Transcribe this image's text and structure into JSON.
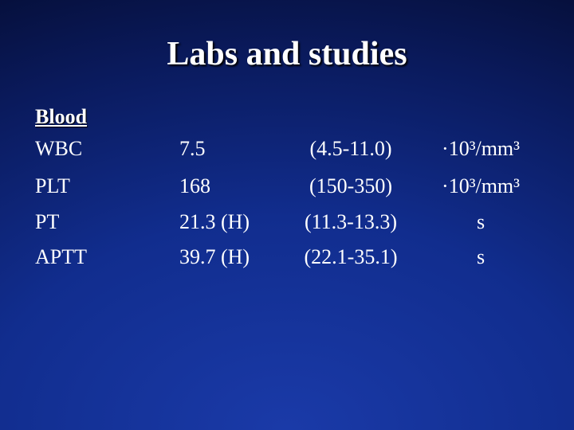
{
  "title": "Labs and studies",
  "section": "Blood",
  "table": {
    "rows": [
      [
        "WBC",
        "7.5",
        "(4.5-11.0)",
        "·10³/mm³"
      ],
      [
        "PLT",
        "168",
        "(150-350)",
        "·10³/mm³"
      ],
      [
        "PT",
        "21.3 (H)",
        "(11.3-13.3)",
        "s"
      ],
      [
        "APTT",
        "39.7 (H)",
        "(22.1-35.1)",
        "s"
      ]
    ]
  }
}
